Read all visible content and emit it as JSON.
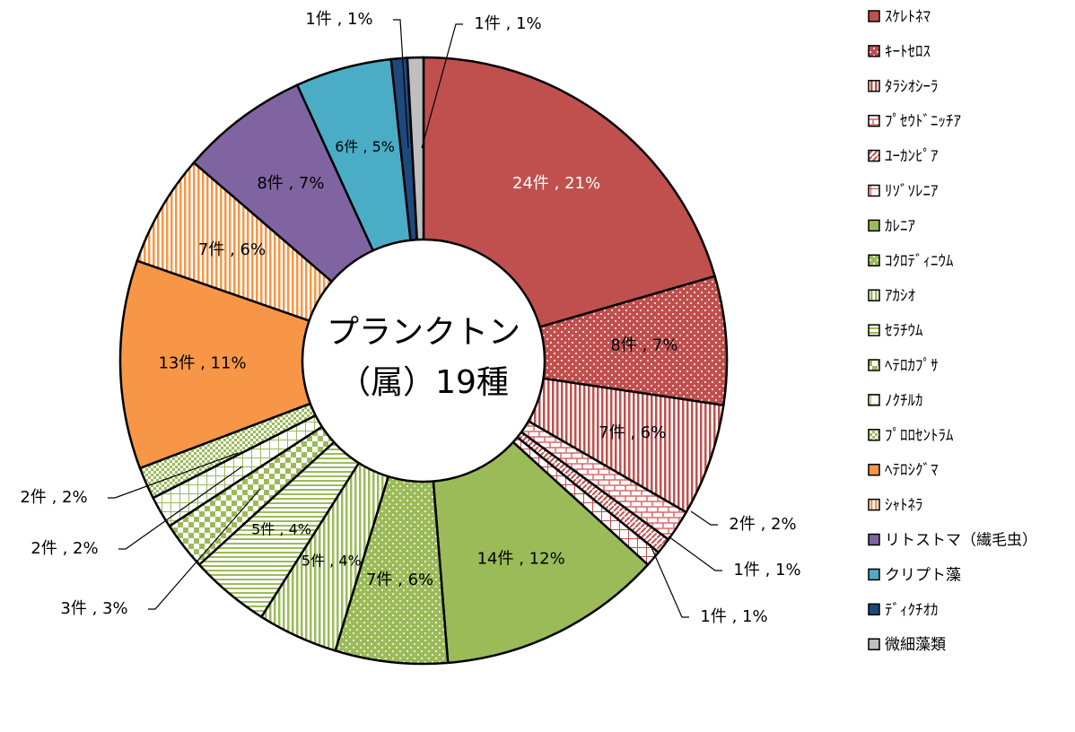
{
  "chart_data": {
    "type": "pie",
    "donut": true,
    "center_text": [
      "プランクトン",
      "（属）19種"
    ],
    "categories": [
      "ｽｹﾚﾄﾈﾏ",
      "ｷｰﾄｾﾛｽ",
      "ﾀﾗｼｵｼｰﾗ",
      "ﾌﾟｾｳﾄﾞﾆｯﾁｱ",
      "ﾕｰｶﾝﾋﾟｱ",
      "ﾘｿﾞｿﾚﾆｱ",
      "ｶﾚﾆｱ",
      "ｺｸﾛﾃﾞｨﾆｳﾑ",
      "ｱｶｼｵ",
      "ｾﾗﾁｳﾑ",
      "ﾍﾃﾛｶﾌﾟｻ",
      "ﾉｸﾁﾙｶ",
      "ﾌﾟﾛﾛｾﾝﾄﾗﾑ",
      "ﾍﾃﾛｼｸﾞﾏ",
      "ｼｬﾄﾈﾗ",
      "リトストマ（繊毛虫）",
      "クリプト藻",
      "ﾃﾞｨｸﾁｵｶ",
      "微細藻類"
    ],
    "values": [
      24,
      8,
      7,
      2,
      1,
      1,
      14,
      7,
      5,
      5,
      3,
      2,
      2,
      13,
      7,
      8,
      6,
      1,
      1
    ],
    "value_labels": [
      "24件 , 21%",
      "8件 , 7%",
      "7件 , 6%",
      "2件 , 2%",
      "1件 , 1%",
      "1件 , 1%",
      "14件 , 12%",
      "7件 , 6%",
      "5件 , 4%",
      "5件 , 4%",
      "3件 , 3%",
      "2件 , 2%",
      "2件 , 2%",
      "13件 , 11%",
      "7件 , 6%",
      "8件 , 7%",
      "6件 , 5%",
      "1件 , 1%",
      "1件 , 1%"
    ],
    "colors": [
      "#c0504d",
      "#c0504d",
      "#c0504d",
      "#d9696a",
      "#c0504d",
      "#c0504d",
      "#9bbb59",
      "#9bbb59",
      "#9bbb59",
      "#9bbb59",
      "#9bbb59",
      "#9bbb59",
      "#9bbb59",
      "#f79646",
      "#f79646",
      "#8064a2",
      "#4bacc6",
      "#1f497d",
      "#bfbfbf"
    ],
    "patterns": [
      "solid",
      "dots",
      "vstripes",
      "brick",
      "diagonal",
      "grid",
      "solid",
      "dots",
      "vstripes",
      "hstripes",
      "checker",
      "grid",
      "smallchecker",
      "solid",
      "vstripes",
      "solid",
      "solid",
      "solid",
      "solid"
    ],
    "legend": "right"
  }
}
